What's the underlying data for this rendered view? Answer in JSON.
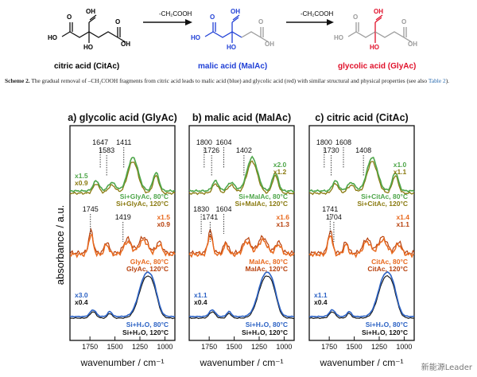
{
  "scheme": {
    "compounds": [
      {
        "name": "citric acid (CitAc)",
        "color": "#111111"
      },
      {
        "name": "malic acid (MalAc)",
        "color": "#1f3fd6"
      },
      {
        "name": "glycolic acid (GlyAc)",
        "color": "#e0102a"
      }
    ],
    "arrow_label": "-CH₂COOH",
    "atoms": {
      "oh": "OH",
      "ho": "HO",
      "o": "O"
    }
  },
  "caption": {
    "label": "Scheme 2.",
    "text": " The gradual removal of –CH₂COOH fragments from citric acid leads to malic acid (blue) and glycolic acid (red) with similar structural and physical properties (see also ",
    "link": "Table 2",
    "end": ")."
  },
  "figure": {
    "ylabel": "absorbance / a.u.",
    "xlabel": "wavenumber / cm⁻¹",
    "xticks": [
      "1750",
      "1500",
      "1250",
      "1000"
    ],
    "colors": {
      "green": "#4ea64a",
      "olive": "#8a7a10",
      "orange": "#e8691e",
      "darkorange": "#b8420e",
      "blue": "#2c62c4",
      "black": "#111111"
    },
    "panels": [
      {
        "title": "a) glycolic acid (GlyAc)",
        "peaks_top": [
          "1647",
          "1583",
          "1411"
        ],
        "peaks_mid": [
          "1745",
          "1419"
        ],
        "scales_top": [
          "x1.5",
          "x0.9"
        ],
        "scales_mid": [
          "x1.5",
          "x0.9"
        ],
        "scales_bot": [
          "x3.0",
          "x0.4"
        ],
        "labels_top": [
          "Si+GlyAc, 80°C",
          "Si+GlyAc, 120°C"
        ],
        "labels_mid": [
          "GlyAc, 80°C",
          "GlyAc, 120°C"
        ],
        "labels_bot": [
          "Si+H₂O, 80°C",
          "Si+H₂O, 120°C"
        ]
      },
      {
        "title": "b) malic acid (MalAc)",
        "peaks_top": [
          "1800",
          "1726",
          "1604",
          "1402"
        ],
        "peaks_mid": [
          "1830",
          "1741",
          "1604"
        ],
        "scales_top": [
          "x2.0",
          "x1.2"
        ],
        "scales_mid": [
          "x1.6",
          "x1.3"
        ],
        "scales_bot": [
          "x1.1",
          "x0.4"
        ],
        "labels_top": [
          "Si+MalAc, 80°C",
          "Si+MalAc, 120°C"
        ],
        "labels_mid": [
          "MalAc, 80°C",
          "MalAc, 120°C"
        ],
        "labels_bot": [
          "Si+H₂O, 80°C",
          "Si+H₂O, 120°C"
        ]
      },
      {
        "title": "c) citric acid (CitAc)",
        "peaks_top": [
          "1800",
          "1730",
          "1608",
          "1408"
        ],
        "peaks_mid": [
          "1741",
          "1704"
        ],
        "scales_top": [
          "x1.0",
          "x1.1"
        ],
        "scales_mid": [
          "x1.4",
          "x1.1"
        ],
        "scales_bot": [
          "x1.1",
          "x0.4"
        ],
        "labels_top": [
          "Si+CitAc, 80°C",
          "Si+CitAc, 120°C"
        ],
        "labels_mid": [
          "CitAc, 80°C",
          "CitAc, 120°C"
        ],
        "labels_bot": [
          "Si+H₂O, 80°C",
          "Si+H₂O, 120°C"
        ]
      }
    ]
  },
  "watermark": {
    "text": "新能源Leader"
  }
}
